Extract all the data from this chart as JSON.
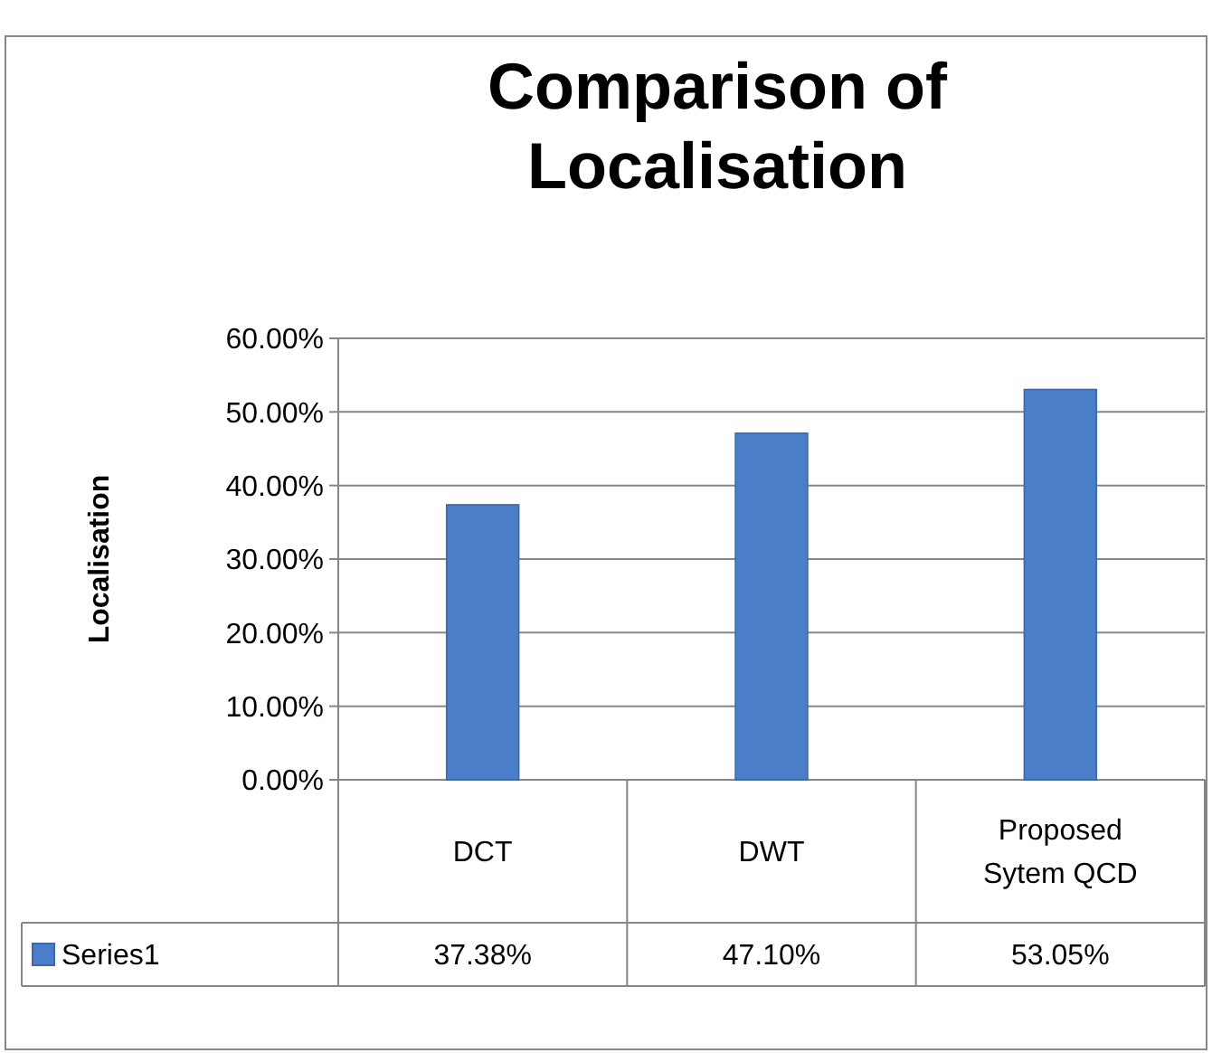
{
  "chart_data": {
    "type": "bar",
    "title": "Comparison of Localisation",
    "ylabel": "Localisation",
    "categories": [
      "DCT",
      "DWT",
      "Proposed Sytem QCD"
    ],
    "series": [
      {
        "name": "Series1",
        "color": "#4a7ec8",
        "values": [
          37.38,
          47.1,
          53.05
        ],
        "value_labels": [
          "37.38%",
          "47.10%",
          "53.05%"
        ]
      }
    ],
    "ylim": [
      0,
      60
    ],
    "yticks": [
      {
        "value": 0,
        "label": "0.00%"
      },
      {
        "value": 10,
        "label": "10.00%"
      },
      {
        "value": 20,
        "label": "20.00%"
      },
      {
        "value": 30,
        "label": "30.00%"
      },
      {
        "value": 40,
        "label": "40.00%"
      },
      {
        "value": 50,
        "label": "50.00%"
      },
      {
        "value": 60,
        "label": "60.00%"
      }
    ],
    "grid": "y",
    "legend": "bottom"
  }
}
